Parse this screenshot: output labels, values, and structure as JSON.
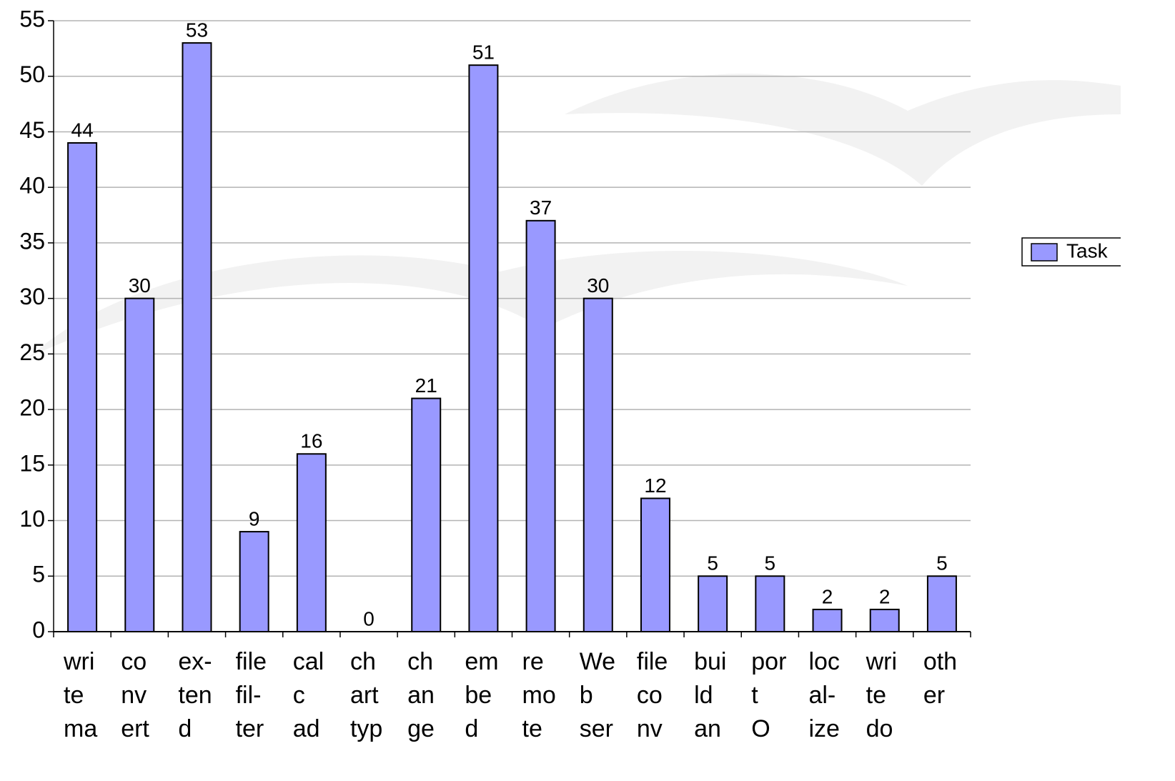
{
  "chart_data": {
    "type": "bar",
    "categories": [
      [
        "wri",
        "te",
        "ma"
      ],
      [
        "co",
        "nv",
        "ert"
      ],
      [
        "ex-",
        "ten",
        "d"
      ],
      [
        "file",
        "fil-",
        "ter"
      ],
      [
        "cal",
        "c",
        "ad"
      ],
      [
        "ch",
        "art",
        "typ"
      ],
      [
        "ch",
        "an",
        "ge"
      ],
      [
        "em",
        "be",
        "d"
      ],
      [
        "re",
        "mo",
        "te"
      ],
      [
        "We",
        "b",
        "ser"
      ],
      [
        "file",
        "co",
        "nv"
      ],
      [
        "bui",
        "ld",
        "an"
      ],
      [
        "por",
        "t",
        "O"
      ],
      [
        "loc",
        "al-",
        "ize"
      ],
      [
        "wri",
        "te",
        "do"
      ],
      [
        "oth",
        "er"
      ]
    ],
    "series": [
      {
        "name": "Task",
        "color": "#9999ff",
        "values": [
          44,
          30,
          53,
          9,
          16,
          0,
          21,
          51,
          37,
          30,
          12,
          5,
          5,
          2,
          2,
          5
        ]
      }
    ],
    "ylim": [
      0,
      55
    ],
    "yticks": [
      0,
      5,
      10,
      15,
      20,
      25,
      30,
      35,
      40,
      45,
      50,
      55
    ],
    "grid": true,
    "legend": "right"
  }
}
